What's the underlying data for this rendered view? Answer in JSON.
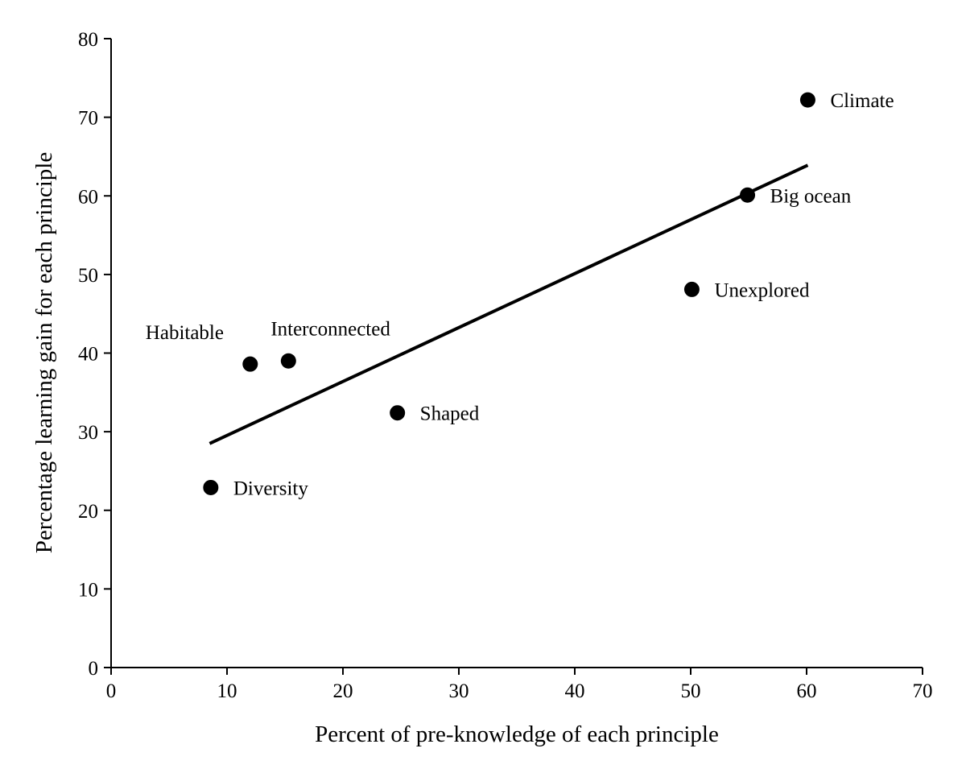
{
  "chart_data": {
    "type": "scatter",
    "xlabel": "Percent of pre-knowledge of each principle",
    "ylabel": "Percentage learning gain for each principle",
    "xlim": [
      0,
      70
    ],
    "ylim": [
      0,
      80
    ],
    "xticks": [
      0,
      10,
      20,
      30,
      40,
      50,
      60,
      70
    ],
    "yticks": [
      0,
      10,
      20,
      30,
      40,
      50,
      60,
      70,
      80
    ],
    "grid": false,
    "legend": "none",
    "marker_color": "#000000",
    "points": [
      {
        "label": "Climate",
        "x": 60.1,
        "y": 72.2,
        "label_side": "right"
      },
      {
        "label": "Big ocean",
        "x": 54.9,
        "y": 60.1,
        "label_side": "right"
      },
      {
        "label": "Unexplored",
        "x": 50.1,
        "y": 48.1,
        "label_side": "right"
      },
      {
        "label": "Habitable",
        "x": 12.0,
        "y": 38.6,
        "label_side": "above-left"
      },
      {
        "label": "Interconnected",
        "x": 15.3,
        "y": 39.0,
        "label_side": "above"
      },
      {
        "label": "Shaped",
        "x": 24.7,
        "y": 32.4,
        "label_side": "right"
      },
      {
        "label": "Diversity",
        "x": 8.6,
        "y": 22.9,
        "label_side": "right"
      }
    ],
    "trendline": {
      "x": [
        8.5,
        60.1
      ],
      "y": [
        28.5,
        63.9
      ]
    }
  }
}
